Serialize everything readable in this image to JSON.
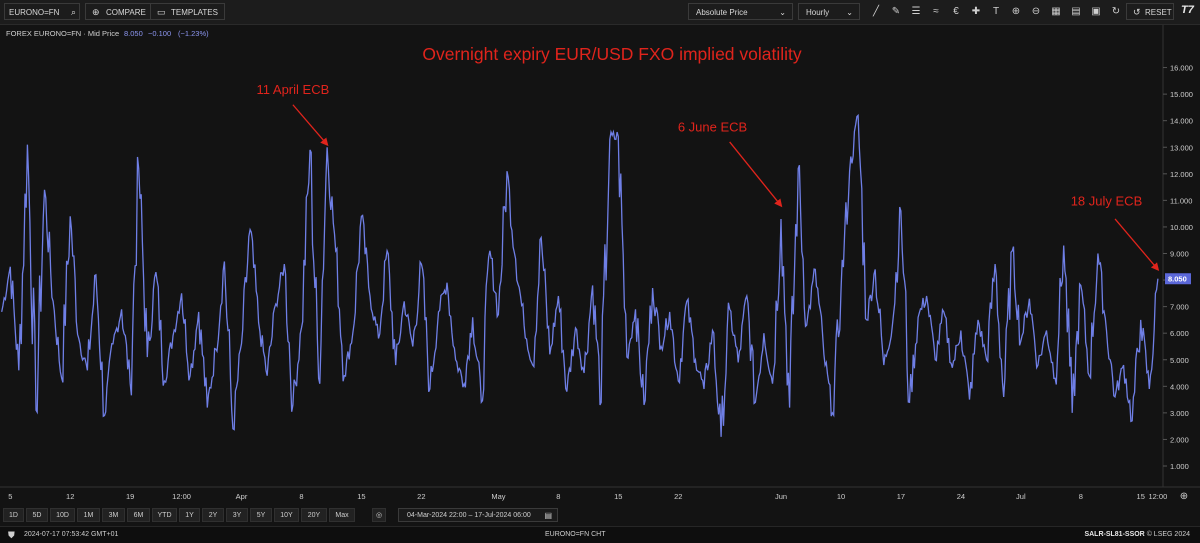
{
  "toolbar": {
    "ric_value": "EURONO=FN",
    "compare_label": "COMPARE",
    "templates_label": "TEMPLATES",
    "price_type": "Absolute Price",
    "interval": "Hourly",
    "reset_label": "RESET",
    "logo_text": "T7",
    "tool_icons": [
      "trend-line-icon",
      "pen-icon",
      "list-icon",
      "pattern-icon",
      "euro-icon",
      "crosshair-icon",
      "text-icon",
      "zoom-in-icon",
      "zoom-out-icon",
      "grid-icon",
      "calendar-icon",
      "layout-icon",
      "refresh-icon",
      "more-icon",
      "settings-icon"
    ]
  },
  "chart_data": {
    "type": "line",
    "legend": {
      "title": "FOREX EURONO=FN · Mid Price",
      "last": "8.050",
      "change": "−0.100",
      "change_pct": "(−1.23%)"
    },
    "title": "Overnight expiry EUR/USD FXO implied volatility",
    "ylim": [
      1.0,
      17.0
    ],
    "y_ticks": [
      "16.000",
      "15.000",
      "14.000",
      "13.000",
      "12.000",
      "11.000",
      "10.000",
      "9.000",
      "8.000",
      "7.000",
      "6.000",
      "5.000",
      "4.000",
      "3.000",
      "2.000",
      "1.000"
    ],
    "last_value_label": "8.050",
    "x_range": [
      "2024-03-04",
      "2024-07-17"
    ],
    "x_ticks": [
      {
        "label": "5",
        "date": "2024-03-05"
      },
      {
        "label": "12",
        "date": "2024-03-12"
      },
      {
        "label": "19",
        "date": "2024-03-19"
      },
      {
        "label": "12:00",
        "date": "2024-03-25"
      },
      {
        "label": "Apr",
        "date": "2024-04-01"
      },
      {
        "label": "8",
        "date": "2024-04-08"
      },
      {
        "label": "15",
        "date": "2024-04-15"
      },
      {
        "label": "22",
        "date": "2024-04-22"
      },
      {
        "label": "May",
        "date": "2024-05-01"
      },
      {
        "label": "8",
        "date": "2024-05-08"
      },
      {
        "label": "15",
        "date": "2024-05-15"
      },
      {
        "label": "22",
        "date": "2024-05-22"
      },
      {
        "label": "Jun",
        "date": "2024-06-03"
      },
      {
        "label": "10",
        "date": "2024-06-10"
      },
      {
        "label": "17",
        "date": "2024-06-17"
      },
      {
        "label": "24",
        "date": "2024-06-24"
      },
      {
        "label": "Jul",
        "date": "2024-07-01"
      },
      {
        "label": "8",
        "date": "2024-07-08"
      },
      {
        "label": "15",
        "date": "2024-07-15"
      },
      {
        "label": "12:00",
        "date": "2024-07-17"
      }
    ],
    "series": [
      {
        "color": "#6f7fe6",
        "points": [
          [
            "2024-03-04",
            6.8
          ],
          [
            "2024-03-05",
            8.5
          ],
          [
            "2024-03-06",
            4.6
          ],
          [
            "2024-03-07",
            13.1
          ],
          [
            "2024-03-08",
            3.1
          ],
          [
            "2024-03-09",
            11.4
          ],
          [
            "2024-03-10",
            7.2
          ],
          [
            "2024-03-11",
            4.3
          ],
          [
            "2024-03-12",
            10.4
          ],
          [
            "2024-03-13",
            5.8
          ],
          [
            "2024-03-14",
            4.6
          ],
          [
            "2024-03-15",
            8.2
          ],
          [
            "2024-03-16",
            2.9
          ],
          [
            "2024-03-17",
            5.6
          ],
          [
            "2024-03-18",
            6.9
          ],
          [
            "2024-03-19",
            4.1
          ],
          [
            "2024-03-20",
            12.2
          ],
          [
            "2024-03-21",
            5.1
          ],
          [
            "2024-03-22",
            8.3
          ],
          [
            "2024-03-23",
            4.2
          ],
          [
            "2024-03-24",
            5.9
          ],
          [
            "2024-03-25",
            7.5
          ],
          [
            "2024-03-26",
            4.4
          ],
          [
            "2024-03-27",
            6.8
          ],
          [
            "2024-03-28",
            3.2
          ],
          [
            "2024-03-29",
            5.4
          ],
          [
            "2024-03-30",
            8.7
          ],
          [
            "2024-03-31",
            2.4
          ],
          [
            "2024-04-01",
            5.6
          ],
          [
            "2024-04-02",
            9.9
          ],
          [
            "2024-04-03",
            6.4
          ],
          [
            "2024-04-04",
            4.4
          ],
          [
            "2024-04-05",
            7.1
          ],
          [
            "2024-04-06",
            8.6
          ],
          [
            "2024-04-07",
            3.3
          ],
          [
            "2024-04-08",
            6.2
          ],
          [
            "2024-04-09",
            12.9
          ],
          [
            "2024-04-10",
            4.3
          ],
          [
            "2024-04-11",
            13.0
          ],
          [
            "2024-04-12",
            9.1
          ],
          [
            "2024-04-13",
            4.4
          ],
          [
            "2024-04-14",
            6.0
          ],
          [
            "2024-04-15",
            10.4
          ],
          [
            "2024-04-16",
            7.4
          ],
          [
            "2024-04-17",
            5.8
          ],
          [
            "2024-04-18",
            9.1
          ],
          [
            "2024-04-19",
            4.8
          ],
          [
            "2024-04-20",
            7.2
          ],
          [
            "2024-04-21",
            5.5
          ],
          [
            "2024-04-22",
            8.6
          ],
          [
            "2024-04-23",
            3.9
          ],
          [
            "2024-04-24",
            6.8
          ],
          [
            "2024-04-25",
            7.9
          ],
          [
            "2024-04-26",
            5.0
          ],
          [
            "2024-04-27",
            4.1
          ],
          [
            "2024-04-28",
            6.6
          ],
          [
            "2024-04-29",
            3.4
          ],
          [
            "2024-04-30",
            9.1
          ],
          [
            "2024-05-01",
            6.7
          ],
          [
            "2024-05-02",
            12.1
          ],
          [
            "2024-05-03",
            8.8
          ],
          [
            "2024-05-04",
            6.3
          ],
          [
            "2024-05-05",
            4.8
          ],
          [
            "2024-05-06",
            9.6
          ],
          [
            "2024-05-07",
            5.2
          ],
          [
            "2024-05-08",
            7.4
          ],
          [
            "2024-05-09",
            3.8
          ],
          [
            "2024-05-10",
            6.2
          ],
          [
            "2024-05-11",
            4.5
          ],
          [
            "2024-05-12",
            7.8
          ],
          [
            "2024-05-13",
            3.4
          ],
          [
            "2024-05-14",
            13.3
          ],
          [
            "2024-05-15",
            13.4
          ],
          [
            "2024-05-16",
            5.1
          ],
          [
            "2024-05-17",
            6.9
          ],
          [
            "2024-05-18",
            3.3
          ],
          [
            "2024-05-19",
            7.7
          ],
          [
            "2024-05-20",
            5.5
          ],
          [
            "2024-05-21",
            6.8
          ],
          [
            "2024-05-22",
            4.2
          ],
          [
            "2024-05-23",
            7.2
          ],
          [
            "2024-05-24",
            5.0
          ],
          [
            "2024-05-25",
            3.9
          ],
          [
            "2024-05-26",
            6.1
          ],
          [
            "2024-05-27",
            2.1
          ],
          [
            "2024-05-28",
            6.9
          ],
          [
            "2024-05-29",
            4.9
          ],
          [
            "2024-05-30",
            7.4
          ],
          [
            "2024-05-31",
            3.4
          ],
          [
            "2024-06-01",
            6.0
          ],
          [
            "2024-06-02",
            4.1
          ],
          [
            "2024-06-03",
            10.3
          ],
          [
            "2024-06-04",
            3.2
          ],
          [
            "2024-06-05",
            12.2
          ],
          [
            "2024-06-06",
            6.3
          ],
          [
            "2024-06-07",
            8.4
          ],
          [
            "2024-06-08",
            5.2
          ],
          [
            "2024-06-09",
            3.0
          ],
          [
            "2024-06-10",
            7.6
          ],
          [
            "2024-06-11",
            12.1
          ],
          [
            "2024-06-12",
            14.2
          ],
          [
            "2024-06-13",
            6.5
          ],
          [
            "2024-06-14",
            8.4
          ],
          [
            "2024-06-15",
            4.8
          ],
          [
            "2024-06-16",
            6.3
          ],
          [
            "2024-06-17",
            10.6
          ],
          [
            "2024-06-18",
            3.4
          ],
          [
            "2024-06-19",
            6.6
          ],
          [
            "2024-06-20",
            7.4
          ],
          [
            "2024-06-21",
            5.0
          ],
          [
            "2024-06-22",
            6.8
          ],
          [
            "2024-06-23",
            4.7
          ],
          [
            "2024-06-24",
            6.1
          ],
          [
            "2024-06-25",
            3.5
          ],
          [
            "2024-06-26",
            6.5
          ],
          [
            "2024-06-27",
            5.0
          ],
          [
            "2024-06-28",
            8.6
          ],
          [
            "2024-06-29",
            3.6
          ],
          [
            "2024-06-30",
            9.1
          ],
          [
            "2024-07-01",
            5.7
          ],
          [
            "2024-07-02",
            7.3
          ],
          [
            "2024-07-03",
            4.8
          ],
          [
            "2024-07-04",
            6.1
          ],
          [
            "2024-07-05",
            4.3
          ],
          [
            "2024-07-06",
            9.3
          ],
          [
            "2024-07-07",
            3.0
          ],
          [
            "2024-07-08",
            7.8
          ],
          [
            "2024-07-09",
            4.4
          ],
          [
            "2024-07-10",
            9.0
          ],
          [
            "2024-07-11",
            6.1
          ],
          [
            "2024-07-12",
            3.6
          ],
          [
            "2024-07-13",
            4.8
          ],
          [
            "2024-07-14",
            2.7
          ],
          [
            "2024-07-15",
            6.5
          ],
          [
            "2024-07-16",
            3.9
          ],
          [
            "2024-07-17",
            8.05
          ]
        ]
      }
    ],
    "annotations": [
      {
        "text": "11 April ECB",
        "label_date": "2024-04-07",
        "label_y": 15.0,
        "arrow_from_date": "2024-04-07",
        "arrow_from_y": 14.6,
        "arrow_to_date": "2024-04-11",
        "arrow_to_y": 13.1
      },
      {
        "text": "6 June ECB",
        "label_date": "2024-05-26",
        "label_y": 13.6,
        "arrow_from_date": "2024-05-28",
        "arrow_from_y": 13.2,
        "arrow_to_date": "2024-06-03",
        "arrow_to_y": 10.8
      },
      {
        "text": "18 July ECB",
        "label_date": "2024-07-11",
        "label_y": 10.8,
        "arrow_from_date": "2024-07-12",
        "arrow_from_y": 10.3,
        "arrow_to_date": "2024-07-17",
        "arrow_to_y": 8.4
      }
    ]
  },
  "range_buttons": [
    "1D",
    "5D",
    "10D",
    "1M",
    "3M",
    "6M",
    "YTD",
    "1Y",
    "2Y",
    "3Y",
    "5Y",
    "10Y",
    "20Y",
    "Max"
  ],
  "date_range": {
    "start": "04-Mar-2024 22:00",
    "sep": "–",
    "end": "17-Jul-2024 06:00"
  },
  "status": {
    "timestamp": "2024-07-17 07:53:42 GMT+01",
    "center": "EURONO=FN CHT",
    "session": "SALR-SL81-SSOR",
    "copyright": "© LSEG 2024"
  }
}
